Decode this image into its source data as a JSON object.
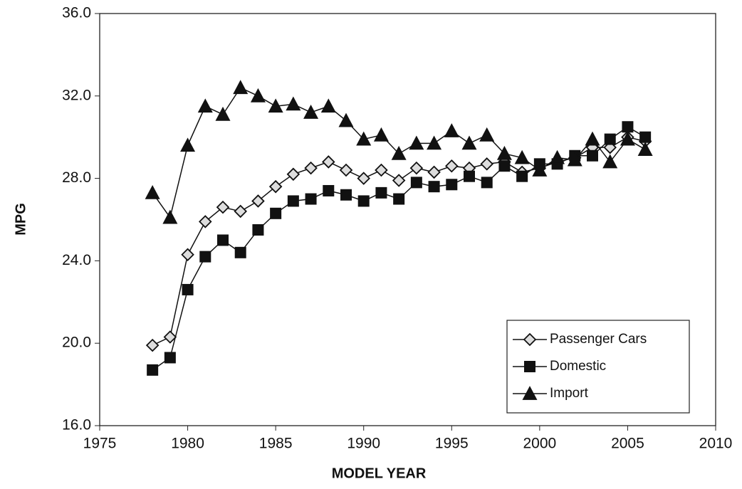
{
  "chart_data": {
    "type": "line",
    "x_label": "MODEL YEAR",
    "y_label": "MPG",
    "x": [
      1978,
      1979,
      1980,
      1981,
      1982,
      1983,
      1984,
      1985,
      1986,
      1987,
      1988,
      1989,
      1990,
      1991,
      1992,
      1993,
      1994,
      1995,
      1996,
      1997,
      1998,
      1999,
      2000,
      2001,
      2002,
      2003,
      2004,
      2005,
      2006
    ],
    "series": [
      {
        "name": "Passenger Cars",
        "color": "#111111",
        "marker": "diamond",
        "values": [
          19.9,
          20.3,
          24.3,
          25.9,
          26.6,
          26.4,
          26.9,
          27.6,
          28.2,
          28.5,
          28.8,
          28.4,
          28.0,
          28.4,
          27.9,
          28.5,
          28.3,
          28.6,
          28.5,
          28.7,
          28.8,
          28.3,
          28.5,
          28.8,
          29.0,
          29.5,
          29.5,
          30.0,
          29.8
        ]
      },
      {
        "name": "Domestic",
        "color": "#111111",
        "marker": "square",
        "values": [
          18.7,
          19.3,
          22.6,
          24.2,
          25.0,
          24.4,
          25.5,
          26.3,
          26.9,
          27.0,
          27.4,
          27.2,
          26.9,
          27.3,
          27.0,
          27.8,
          27.6,
          27.7,
          28.1,
          27.8,
          28.6,
          28.1,
          28.7,
          28.7,
          29.1,
          29.1,
          29.9,
          30.5,
          30.0
        ]
      },
      {
        "name": "Import",
        "color": "#111111",
        "marker": "triangle",
        "values": [
          27.3,
          26.1,
          29.6,
          31.5,
          31.1,
          32.4,
          32.0,
          31.5,
          31.6,
          31.2,
          31.5,
          30.8,
          29.9,
          30.1,
          29.2,
          29.7,
          29.7,
          30.3,
          29.7,
          30.1,
          29.2,
          29.0,
          28.4,
          29.0,
          28.9,
          29.9,
          28.8,
          29.9,
          29.4
        ]
      }
    ],
    "xlim": [
      1975,
      2010
    ],
    "xticks": [
      1975,
      1980,
      1985,
      1990,
      1995,
      2000,
      2005,
      2010
    ],
    "ylim": [
      16,
      36
    ],
    "yticks": [
      {
        "value": 16,
        "label": "16.0"
      },
      {
        "value": 20,
        "label": "20.0"
      },
      {
        "value": 24,
        "label": "24.0"
      },
      {
        "value": 28,
        "label": "28.0"
      },
      {
        "value": 32,
        "label": "32.0"
      },
      {
        "value": 36,
        "label": "36.0"
      }
    ],
    "legend": "lower right"
  }
}
